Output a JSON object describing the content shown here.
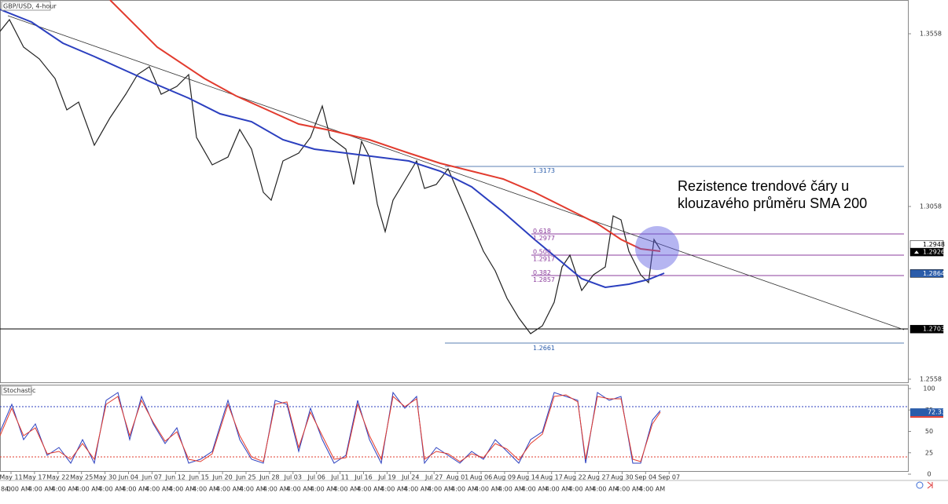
{
  "title": "GBP/USD, 4-hour",
  "price_axis": [
    1.3558,
    1.3058,
    1.2558
  ],
  "price_tags": [
    {
      "value": 1.2948,
      "style": "white"
    },
    {
      "value": 1.2926,
      "style": "black"
    },
    {
      "value": 1.2864,
      "style": "blue"
    },
    {
      "value": 1.2703,
      "style": "black"
    }
  ],
  "fib_levels": [
    {
      "ratio": "0.618",
      "price": 1.2977
    },
    {
      "ratio": "0.500",
      "price": 1.2917
    },
    {
      "ratio": "0.382",
      "price": 1.2857
    }
  ],
  "range_levels": [
    1.3173,
    1.2661
  ],
  "annotation": [
    "Rezistence trendové čáry u",
    "klouzavého průměru SMA 200"
  ],
  "stochastic": {
    "title": "Stochastic",
    "axis": [
      100,
      75,
      50,
      25,
      0
    ],
    "tag": 72.33
  },
  "dates": [
    "May 11",
    "May 17",
    "May 22",
    "May 25",
    "May 30",
    "Jun 04",
    "Jun 07",
    "Jun 12",
    "Jun 15",
    "Jun 20",
    "Jun 25",
    "Jun 28",
    "Jul 03",
    "Jul 06",
    "Jul 11",
    "Jul 16",
    "Jul 19",
    "Jul 24",
    "Jul 27",
    "Aug 01",
    "Aug 06",
    "Aug 09",
    "Aug 14",
    "Aug 17",
    "Aug 22",
    "Aug 27",
    "Aug 30",
    "Sep 04",
    "Sep 07"
  ],
  "times": [
    "8:0",
    "4:00 AM",
    "4:00 AM",
    "4:00 AM",
    "4:00 AM",
    "4:00 AM",
    "4:00 AM",
    "4:00 AM",
    "4:00 AM",
    "4:00 AM",
    "4:00 AM",
    "4:00 AM",
    "4:00 AM",
    "4:00 AM",
    "4:00 AM",
    "4:00 AM",
    "4:00 AM",
    "4:00 AM",
    "4:00 AM",
    "4:00 AM",
    "4:00 AM",
    "4:00 AM",
    "4:00 AM",
    "4:00 AM",
    "4:00 AM",
    "4:00 AM",
    "4:00 AM",
    "4:00 AM",
    "4:00 AM"
  ]
}
